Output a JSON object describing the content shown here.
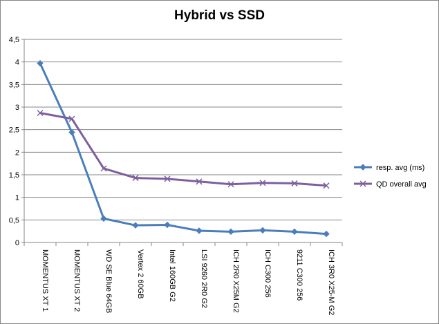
{
  "chart_data": {
    "type": "line",
    "title": "Hybrid vs SSD",
    "xlabel": "",
    "ylabel": "",
    "categories": [
      "MOMENTUS XT 1",
      "MOMENTUS XT 2",
      "WD SE Blue 64GB",
      "Vertex 2 60GB",
      "Intel 160GB G2",
      "LSI 9260 2R0 G2",
      "ICH 2R0 X25M G2",
      "ICH C300 256",
      "9211 C300 256",
      "ICH 3R0 X25-M G2"
    ],
    "series": [
      {
        "name": "resp. avg (ms)",
        "color": "#4a7ebb",
        "marker": "diamond",
        "values": [
          3.97,
          2.44,
          0.53,
          0.38,
          0.39,
          0.26,
          0.24,
          0.27,
          0.24,
          0.19
        ]
      },
      {
        "name": "QD overall avg",
        "color": "#7d5f9e",
        "marker": "x",
        "values": [
          2.87,
          2.74,
          1.64,
          1.43,
          1.41,
          1.35,
          1.29,
          1.32,
          1.31,
          1.26
        ]
      }
    ],
    "ylim": [
      0,
      4.5
    ],
    "yticks": [
      "0",
      "0,5",
      "1",
      "1,5",
      "2",
      "2,5",
      "3",
      "3,5",
      "4",
      "4,5"
    ],
    "grid": true,
    "legend_position": "right"
  }
}
